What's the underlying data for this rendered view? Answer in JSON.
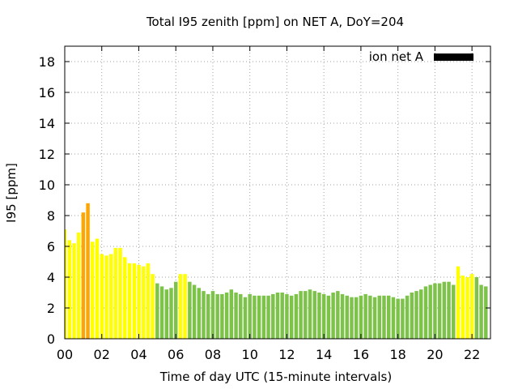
{
  "chart_data": {
    "type": "bar",
    "title": "Total I95 zenith [ppm] on NET A, DoY=204",
    "xlabel": "Time of day UTC (15-minute intervals)",
    "ylabel": "I95 [ppm]",
    "xlim": [
      0,
      23
    ],
    "ylim": [
      0,
      19
    ],
    "x_ticks": [
      "00",
      "02",
      "04",
      "06",
      "08",
      "10",
      "12",
      "14",
      "16",
      "18",
      "20",
      "22"
    ],
    "y_ticks": [
      "0",
      "2",
      "4",
      "6",
      "8",
      "10",
      "12",
      "14",
      "16",
      "18"
    ],
    "interval_hours": 0.25,
    "grid": true,
    "legend": {
      "label": "ion net A",
      "position": "top-right",
      "color": "#000000"
    },
    "colors": {
      "green": "#7dc34a",
      "yellow": "#ffff00",
      "orange": "#ffa500"
    },
    "values": [
      7.1,
      6.4,
      6.2,
      6.9,
      8.2,
      8.8,
      6.3,
      6.5,
      5.5,
      5.4,
      5.5,
      5.9,
      5.9,
      5.3,
      4.9,
      4.9,
      4.8,
      4.7,
      4.9,
      4.2,
      3.6,
      3.4,
      3.2,
      3.3,
      3.7,
      4.2,
      4.2,
      3.7,
      3.5,
      3.3,
      3.1,
      2.9,
      3.1,
      2.9,
      2.9,
      3.0,
      3.2,
      3.0,
      2.9,
      2.7,
      2.9,
      2.8,
      2.8,
      2.8,
      2.8,
      2.9,
      3.0,
      3.0,
      2.9,
      2.8,
      2.9,
      3.1,
      3.1,
      3.2,
      3.1,
      3.0,
      2.9,
      2.8,
      3.0,
      3.1,
      2.9,
      2.8,
      2.7,
      2.7,
      2.8,
      2.9,
      2.8,
      2.7,
      2.8,
      2.8,
      2.8,
      2.7,
      2.6,
      2.6,
      2.8,
      3.0,
      3.1,
      3.2,
      3.4,
      3.5,
      3.6,
      3.6,
      3.7,
      3.7,
      3.5,
      4.7,
      4.1,
      4.0,
      4.2,
      4.0,
      3.5,
      3.4
    ],
    "bar_colors": [
      "yellow",
      "yellow",
      "yellow",
      "yellow",
      "orange",
      "orange",
      "yellow",
      "yellow",
      "yellow",
      "yellow",
      "yellow",
      "yellow",
      "yellow",
      "yellow",
      "yellow",
      "yellow",
      "yellow",
      "yellow",
      "yellow",
      "yellow",
      "green",
      "green",
      "green",
      "green",
      "green",
      "yellow",
      "yellow",
      "green",
      "green",
      "green",
      "green",
      "green",
      "green",
      "green",
      "green",
      "green",
      "green",
      "green",
      "green",
      "green",
      "green",
      "green",
      "green",
      "green",
      "green",
      "green",
      "green",
      "green",
      "green",
      "green",
      "green",
      "green",
      "green",
      "green",
      "green",
      "green",
      "green",
      "green",
      "green",
      "green",
      "green",
      "green",
      "green",
      "green",
      "green",
      "green",
      "green",
      "green",
      "green",
      "green",
      "green",
      "green",
      "green",
      "green",
      "green",
      "green",
      "green",
      "green",
      "green",
      "green",
      "green",
      "green",
      "green",
      "green",
      "green",
      "yellow",
      "yellow",
      "yellow",
      "yellow",
      "green",
      "green",
      "green"
    ]
  }
}
